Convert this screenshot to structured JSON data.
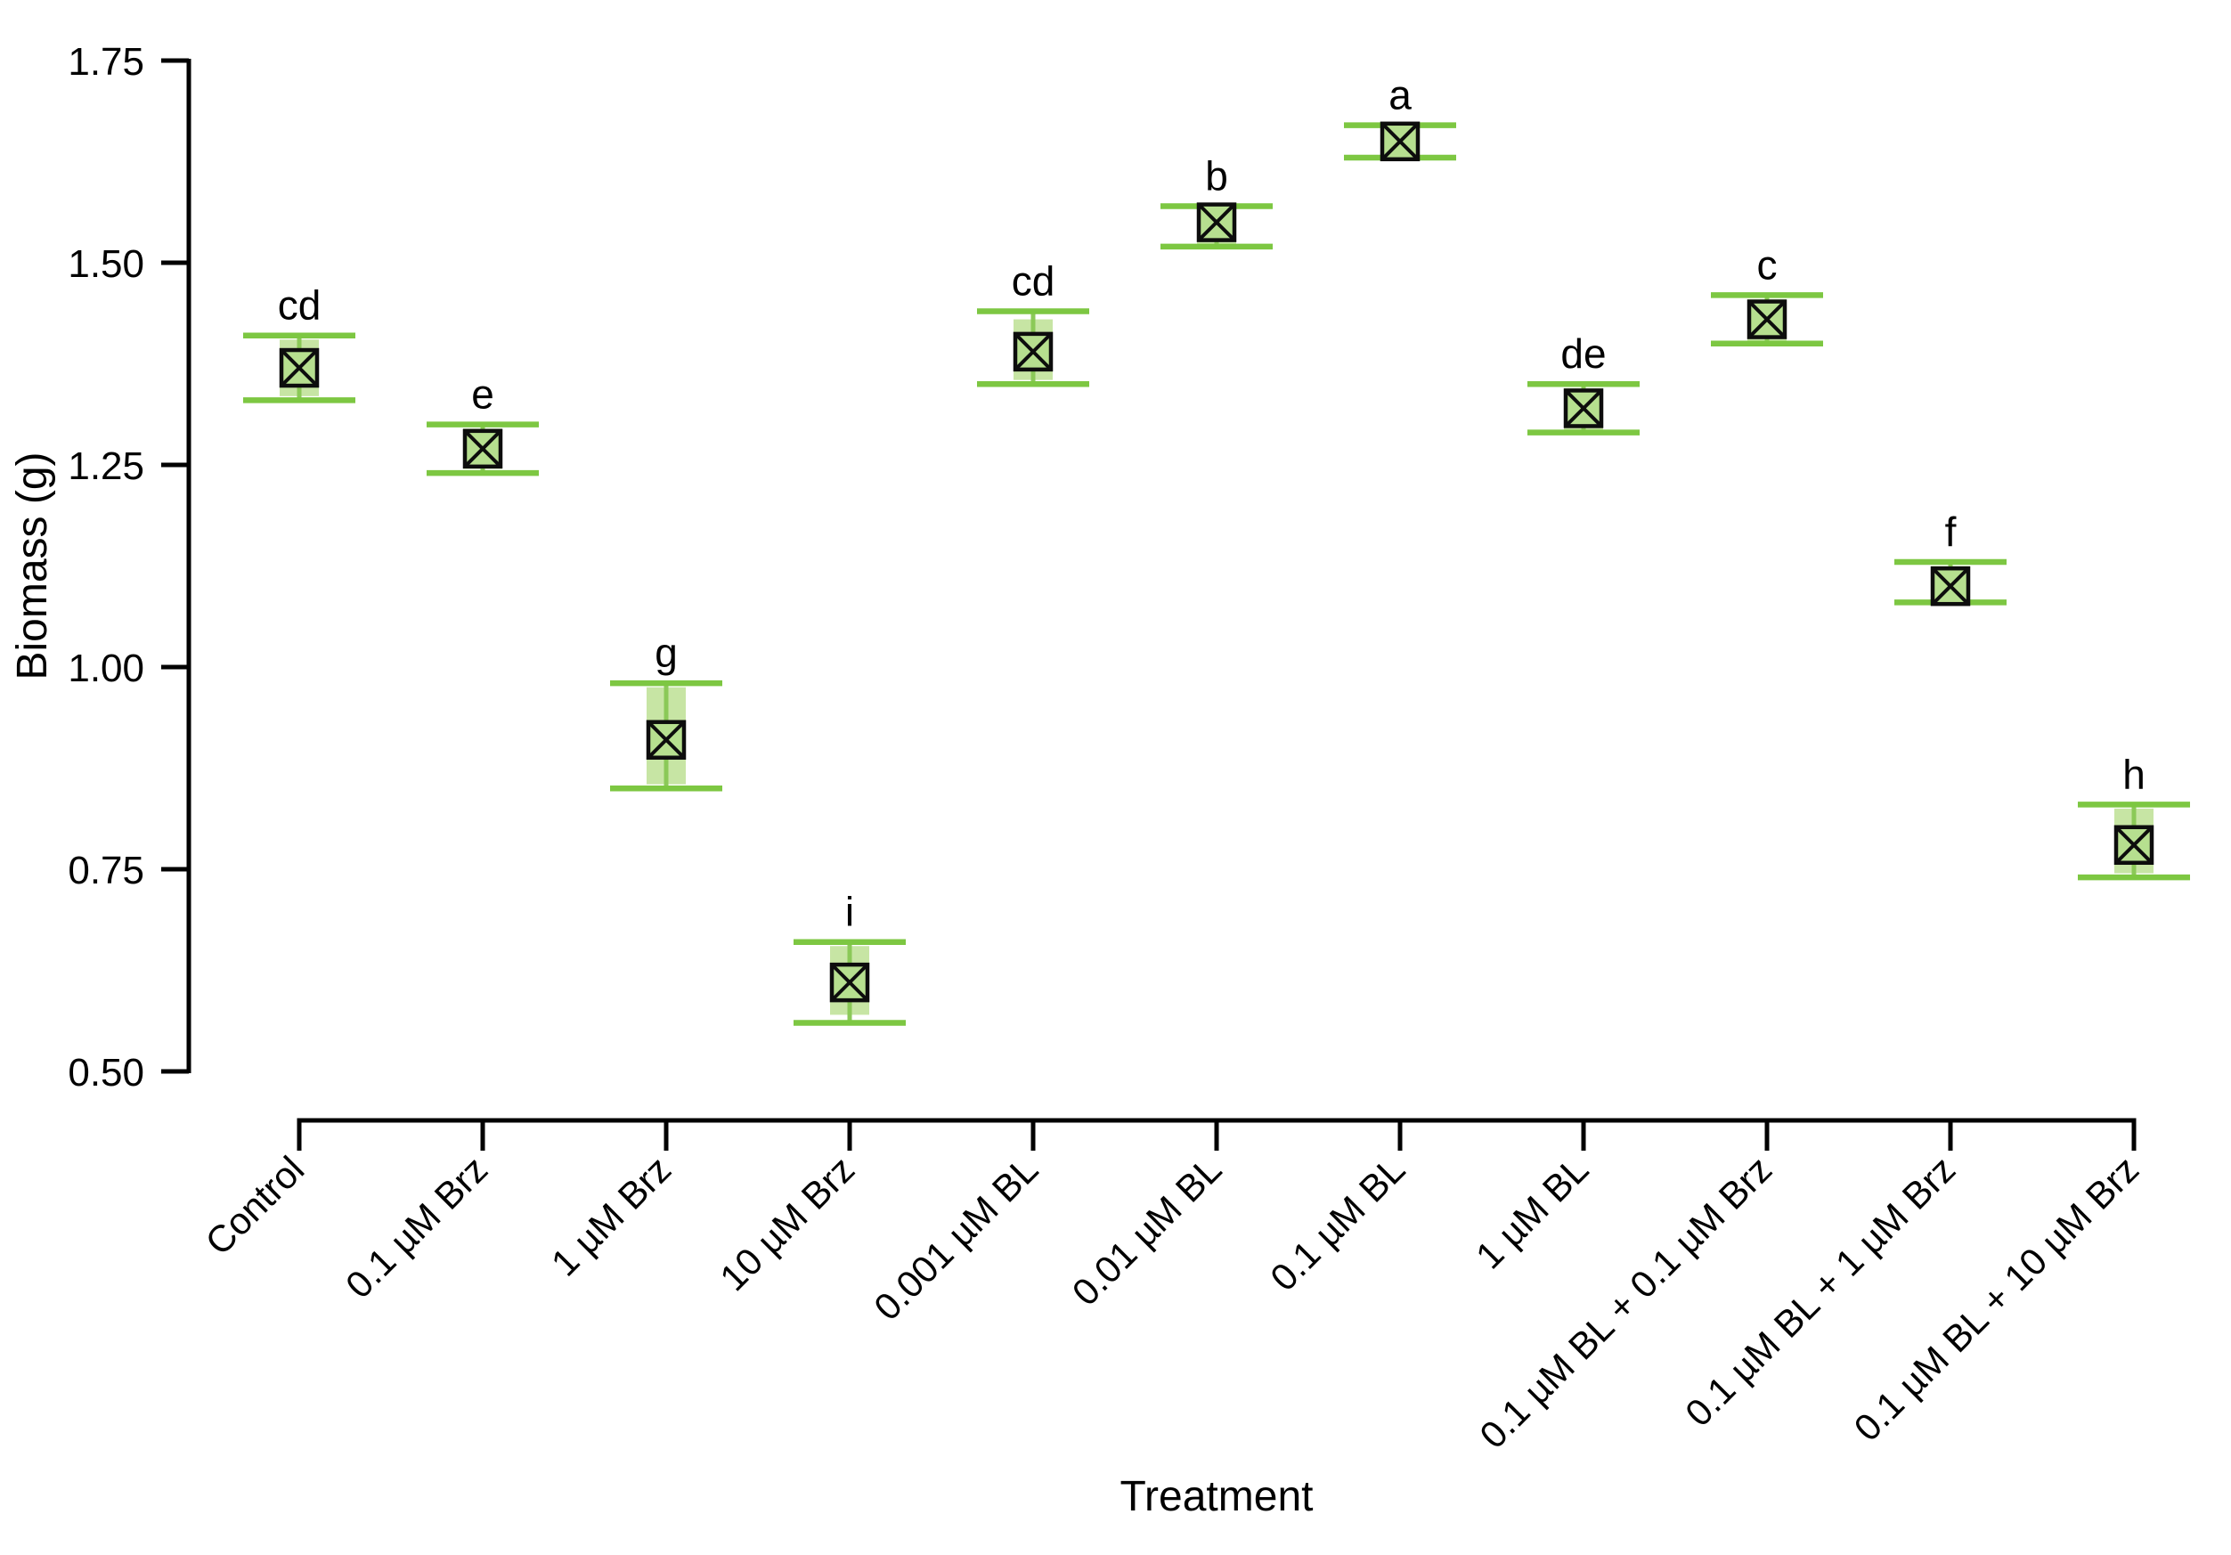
{
  "chart_data": {
    "type": "scatter",
    "subtype": "mean-with-error-band-and-whiskers",
    "title": "",
    "xlabel": "Treatment",
    "ylabel": "Biomass (g)",
    "ylim": [
      0.5,
      1.75
    ],
    "grid": false,
    "legend": null,
    "yticks": [
      {
        "value": 1.75,
        "label": "1.75"
      },
      {
        "value": 1.5,
        "label": "1.50"
      },
      {
        "value": 1.25,
        "label": "1.25"
      },
      {
        "value": 1.0,
        "label": "1.00"
      },
      {
        "value": 0.75,
        "label": "0.75"
      },
      {
        "value": 0.5,
        "label": "0.50"
      }
    ],
    "categories": [
      "Control",
      "0.1 µM Brz",
      "1 µM Brz",
      "10 µM Brz",
      "0.001 µM BL",
      "0.01 µM BL",
      "0.1 µM BL",
      "1 µM BL",
      "0.1 µM BL + 0.1 µM Brz",
      "0.1 µM BL + 1 µM Brz",
      "0.1 µM BL + 10 µM Brz"
    ],
    "series": [
      {
        "name": "Biomass (g)",
        "marker": "crossed-square",
        "points": [
          {
            "category": "Control",
            "mean": 1.37,
            "whisker_low": 1.33,
            "whisker_high": 1.41,
            "band_low": 1.335,
            "band_high": 1.405,
            "letter": "cd"
          },
          {
            "category": "0.1 µM Brz",
            "mean": 1.27,
            "whisker_low": 1.24,
            "whisker_high": 1.3,
            "band_low": 1.245,
            "band_high": 1.295,
            "letter": "e"
          },
          {
            "category": "1 µM Brz",
            "mean": 0.91,
            "whisker_low": 0.85,
            "whisker_high": 0.98,
            "band_low": 0.855,
            "band_high": 0.975,
            "letter": "g"
          },
          {
            "category": "10 µM Brz",
            "mean": 0.61,
            "whisker_low": 0.56,
            "whisker_high": 0.66,
            "band_low": 0.57,
            "band_high": 0.655,
            "letter": "i"
          },
          {
            "category": "0.001 µM BL",
            "mean": 1.39,
            "whisker_low": 1.35,
            "whisker_high": 1.44,
            "band_low": 1.355,
            "band_high": 1.43,
            "letter": "cd"
          },
          {
            "category": "0.01 µM BL",
            "mean": 1.55,
            "whisker_low": 1.52,
            "whisker_high": 1.57,
            "band_low": 1.522,
            "band_high": 1.565,
            "letter": "b"
          },
          {
            "category": "0.1 µM BL",
            "mean": 1.65,
            "whisker_low": 1.63,
            "whisker_high": 1.67,
            "band_low": 1.632,
            "band_high": 1.665,
            "letter": "a"
          },
          {
            "category": "1 µM BL",
            "mean": 1.32,
            "whisker_low": 1.29,
            "whisker_high": 1.35,
            "band_low": 1.292,
            "band_high": 1.345,
            "letter": "de"
          },
          {
            "category": "0.1 µM BL + 0.1 µM Brz",
            "mean": 1.43,
            "whisker_low": 1.4,
            "whisker_high": 1.46,
            "band_low": 1.402,
            "band_high": 1.455,
            "letter": "c"
          },
          {
            "category": "0.1 µM BL + 1 µM Brz",
            "mean": 1.1,
            "whisker_low": 1.08,
            "whisker_high": 1.13,
            "band_low": 1.082,
            "band_high": 1.125,
            "letter": "f"
          },
          {
            "category": "0.1 µM BL + 10 µM Brz",
            "mean": 0.78,
            "whisker_low": 0.74,
            "whisker_high": 0.83,
            "band_low": 0.745,
            "band_high": 0.825,
            "letter": "h"
          }
        ]
      }
    ],
    "colors": {
      "whisker_green": "#7dc742",
      "band_green": "#c7e5a4",
      "center_line_green": "#8bc958",
      "marker_fill_green": "#b6df8f",
      "marker_stroke": "#0d0d0d",
      "axis_black": "#000000",
      "text_black": "#000000",
      "background": "#ffffff"
    }
  }
}
